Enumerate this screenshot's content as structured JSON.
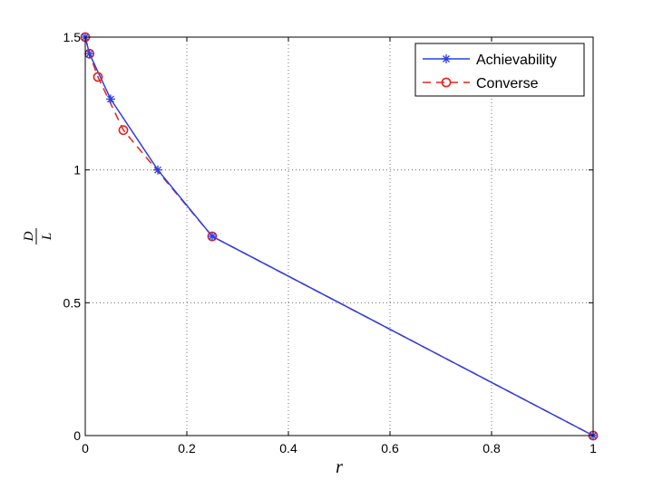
{
  "chart_data": {
    "type": "line",
    "xlabel": "r",
    "ylabel_numerator": "D",
    "ylabel_denominator": "L",
    "xlim": [
      0,
      1
    ],
    "ylim": [
      0,
      1.5
    ],
    "xticks": [
      0,
      0.2,
      0.4,
      0.6,
      0.8,
      1
    ],
    "xtick_labels": [
      "0",
      "0.2",
      "0.4",
      "0.6",
      "0.8",
      "1"
    ],
    "yticks": [
      0,
      0.5,
      1,
      1.5
    ],
    "ytick_labels": [
      "0",
      "0.5",
      "1",
      "1.5"
    ],
    "grid": true,
    "legend_position": "top-right",
    "series": [
      {
        "name": "Achievability",
        "color": "#2a3fe6",
        "line_style": "solid",
        "marker": "asterisk",
        "x": [
          0,
          0.0083,
          0.05,
          0.1429,
          0.25,
          1
        ],
        "y": [
          1.5,
          1.4375,
          1.2667,
          1.0,
          0.75,
          0
        ]
      },
      {
        "name": "Converse",
        "color": "#e8231f",
        "line_style": "dashed",
        "marker": "circle",
        "x": [
          0,
          0.0083,
          0.025,
          0.075,
          0.25,
          1
        ],
        "y": [
          1.5,
          1.4375,
          1.35,
          1.15,
          0.75,
          0
        ]
      }
    ]
  }
}
